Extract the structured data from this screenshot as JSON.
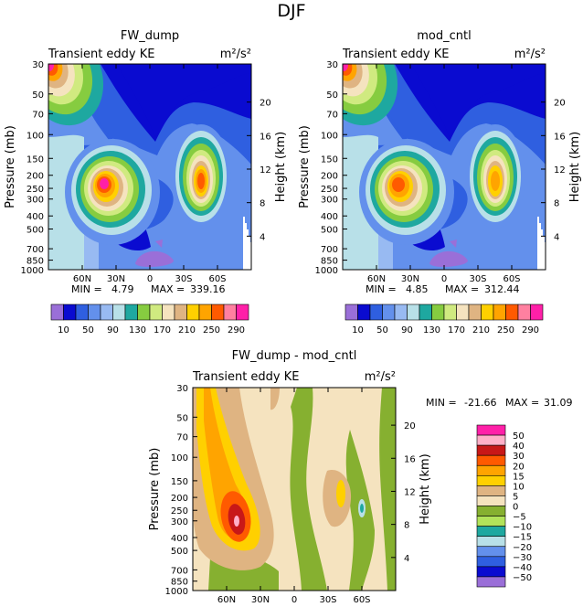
{
  "page_title": "DJF",
  "chart_data": [
    {
      "type": "contour",
      "title": "FW_dump",
      "subtitle": "Transient eddy KE",
      "units": "m²/s²",
      "ylabel": "Pressure (mb)",
      "ylabel_right": "Height (km)",
      "xlim": [
        90,
        -90
      ],
      "pressure_ticks": [
        30,
        50,
        70,
        100,
        150,
        200,
        250,
        300,
        400,
        500,
        700,
        850,
        1000
      ],
      "height_ticks": [
        4,
        8,
        12,
        16,
        20
      ],
      "lat_ticks": [
        "60N",
        "30N",
        "0",
        "30S",
        "60S"
      ],
      "min_label": "MIN =",
      "min_value": "4.79",
      "max_label": "MAX =",
      "max_value": "339.16",
      "levels": [
        10,
        30,
        50,
        70,
        90,
        110,
        130,
        150,
        170,
        190,
        210,
        230,
        250,
        270,
        290
      ],
      "level_labels": [
        "10",
        "50",
        "90",
        "130",
        "170",
        "210",
        "250",
        "290"
      ],
      "features": [
        {
          "kind": "max",
          "lat": 37,
          "pressure": 250,
          "peak": 339
        },
        {
          "kind": "max",
          "lat": -40,
          "pressure": 225,
          "peak": 300
        },
        {
          "kind": "max",
          "lat": 85,
          "pressure": 30,
          "peak": 339
        }
      ]
    },
    {
      "type": "contour",
      "title": "mod_cntl",
      "subtitle": "Transient eddy KE",
      "units": "m²/s²",
      "ylabel": "Pressure (mb)",
      "ylabel_right": "Height (km)",
      "xlim": [
        90,
        -90
      ],
      "pressure_ticks": [
        30,
        50,
        70,
        100,
        150,
        200,
        250,
        300,
        400,
        500,
        700,
        850,
        1000
      ],
      "height_ticks": [
        4,
        8,
        12,
        16,
        20
      ],
      "lat_ticks": [
        "60N",
        "30N",
        "0",
        "30S",
        "60S"
      ],
      "min_label": "MIN =",
      "min_value": "4.85",
      "max_label": "MAX =",
      "max_value": "312.44",
      "levels": [
        10,
        30,
        50,
        70,
        90,
        110,
        130,
        150,
        170,
        190,
        210,
        230,
        250,
        270,
        290
      ],
      "level_labels": [
        "10",
        "50",
        "90",
        "130",
        "170",
        "210",
        "250",
        "290"
      ],
      "features": [
        {
          "kind": "max",
          "lat": 37,
          "pressure": 250,
          "peak": 312
        },
        {
          "kind": "max",
          "lat": -40,
          "pressure": 225,
          "peak": 290
        },
        {
          "kind": "max",
          "lat": 85,
          "pressure": 30,
          "peak": 312
        }
      ]
    },
    {
      "type": "contour",
      "title": "FW_dump - mod_cntl",
      "subtitle": "Transient eddy KE",
      "units": "m²/s²",
      "ylabel": "Pressure (mb)",
      "ylabel_right": "Height (km)",
      "xlim": [
        90,
        -90
      ],
      "pressure_ticks": [
        30,
        50,
        70,
        100,
        150,
        200,
        250,
        300,
        400,
        500,
        700,
        850,
        1000
      ],
      "height_ticks": [
        4,
        8,
        12,
        16,
        20
      ],
      "lat_ticks": [
        "60N",
        "30N",
        "0",
        "30S",
        "60S"
      ],
      "min_label": "MIN =",
      "min_value": "-21.66",
      "max_label": "MAX =",
      "max_value": "31.09",
      "levels": [
        -50,
        -40,
        -30,
        -20,
        -15,
        -10,
        -5,
        0,
        5,
        10,
        15,
        20,
        30,
        40,
        50
      ],
      "level_labels": [
        "50",
        "40",
        "30",
        "20",
        "15",
        "10",
        "5",
        "0",
        "−5",
        "−10",
        "−15",
        "−20",
        "−30",
        "−40",
        "−50"
      ],
      "features": [
        {
          "kind": "max",
          "lat": 55,
          "pressure": 300,
          "peak": 31
        },
        {
          "kind": "min",
          "lat": -60,
          "pressure": 260,
          "peak": -21
        }
      ]
    }
  ],
  "colors": {
    "kepal": [
      "#9a6fd8",
      "#0a0bd0",
      "#2f5fe0",
      "#6390ec",
      "#98baf2",
      "#b8e0e8",
      "#1ea8a0",
      "#86cc40",
      "#d0ea80",
      "#f5e3bf",
      "#dfb482",
      "#ffd000",
      "#ffa400",
      "#ff5a00",
      "#ff80a0",
      "#ff20a8"
    ],
    "diffpal": [
      "#ff20a8",
      "#ffb0c8",
      "#c81818",
      "#ff5a00",
      "#ffa400",
      "#ffd000",
      "#dfb482",
      "#f5e3bf",
      "#86b030",
      "#b2e35a",
      "#1ea8a0",
      "#b8e0e8",
      "#6390ec",
      "#2f5fe0",
      "#0a0bd0",
      "#9a6fd8"
    ]
  }
}
